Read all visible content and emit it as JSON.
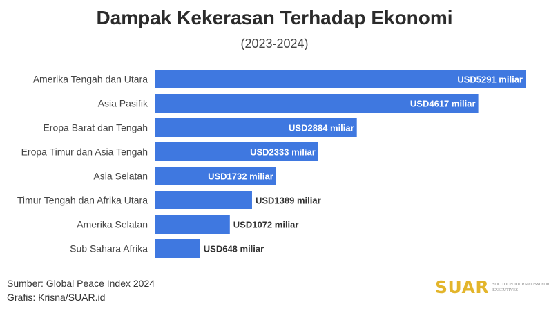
{
  "chart_data": {
    "type": "bar",
    "orientation": "horizontal",
    "title": "Dampak Kekerasan Terhadap Ekonomi",
    "subtitle": "(2023-2024)",
    "categories": [
      "Amerika Tengah dan Utara",
      "Asia Pasifik",
      "Eropa Barat dan Tengah",
      "Eropa Timur dan Asia Tengah",
      "Asia Selatan",
      "Timur Tengah dan Afrika Utara",
      "Amerika Selatan",
      "Sub Sahara Afrika"
    ],
    "values": [
      5291,
      4617,
      2884,
      2333,
      1732,
      1389,
      1072,
      648
    ],
    "value_labels": [
      "USD5291 miliar",
      "USD4617 miliar",
      "USD2884 miliar",
      "USD2333 miliar",
      "USD1732 miliar",
      "USD1389 miliar",
      "USD1072 miliar",
      "USD648 miliar"
    ],
    "xlim": [
      0,
      5291
    ],
    "bar_color": "#3f78e0",
    "grid": false,
    "legend": "none"
  },
  "footer": {
    "source": "Sumber: Global Peace Index 2024",
    "credit": "Grafis: Krisna/SUAR.id"
  },
  "brand": {
    "name": "SUAR",
    "tagline": "Solution Journalism for Executives",
    "color": "#e3b52b"
  }
}
